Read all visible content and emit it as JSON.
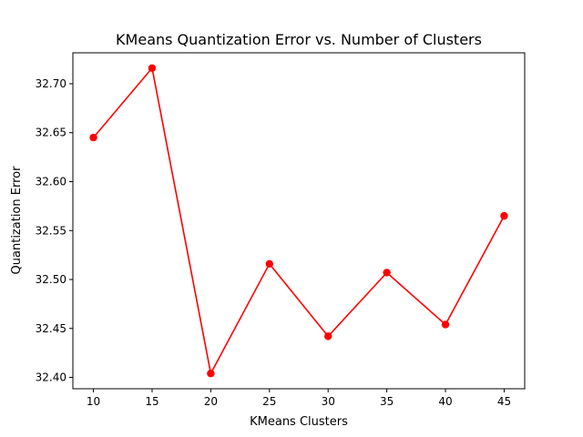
{
  "chart_data": {
    "type": "line",
    "title": "KMeans Quantization Error vs. Number of Clusters",
    "xlabel": "KMeans Clusters",
    "ylabel": "Quantization Error",
    "x": [
      10,
      15,
      20,
      25,
      30,
      35,
      40,
      45
    ],
    "series": [
      {
        "values": [
          32.645,
          32.716,
          32.404,
          32.516,
          32.442,
          32.507,
          32.454,
          32.565
        ]
      }
    ],
    "xticks": [
      "10",
      "15",
      "20",
      "25",
      "30",
      "35",
      "40",
      "45"
    ],
    "yticks": [
      "32.40",
      "32.45",
      "32.50",
      "32.55",
      "32.60",
      "32.65",
      "32.70"
    ],
    "xlim": [
      8.25,
      46.75
    ],
    "ylim": [
      32.3884,
      32.7316
    ],
    "line_color": "#ff0000",
    "marker": "circle",
    "grid": false
  }
}
